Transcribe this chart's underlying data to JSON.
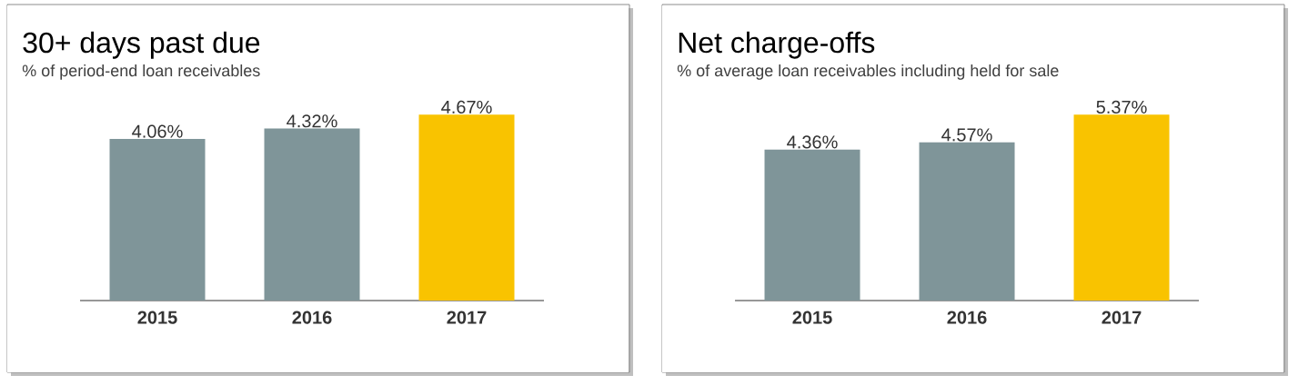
{
  "chart_data": [
    {
      "type": "bar",
      "title": "30+ days past due",
      "subtitle": "% of period-end loan receivables",
      "categories": [
        "2015",
        "2016",
        "2017"
      ],
      "values": [
        4.06,
        4.32,
        4.67
      ],
      "colors": [
        "#7f9599",
        "#7f9599",
        "#f9c300"
      ],
      "value_labels": [
        "4.06%",
        "4.32%",
        "4.67%"
      ]
    },
    {
      "type": "bar",
      "title": "Net charge-offs",
      "subtitle": "% of average loan receivables including held for sale",
      "categories": [
        "2015",
        "2016",
        "2017"
      ],
      "values": [
        4.36,
        4.57,
        5.37
      ],
      "colors": [
        "#7f9599",
        "#7f9599",
        "#f9c300"
      ],
      "value_labels": [
        "4.36%",
        "4.57%",
        "5.37%"
      ]
    }
  ]
}
